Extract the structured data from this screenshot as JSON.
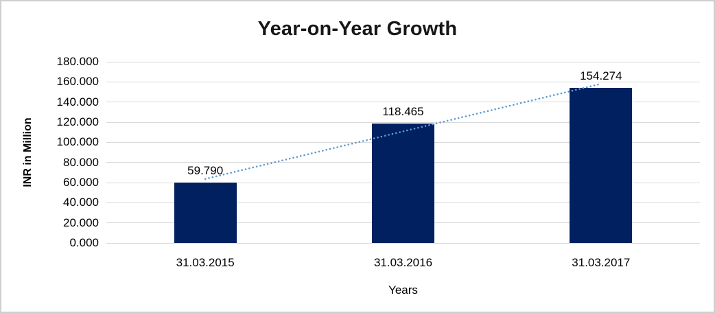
{
  "chart_data": {
    "type": "bar",
    "title": "Year-on-Year Growth",
    "xlabel": "Years",
    "ylabel": "INR in Million",
    "categories": [
      "31.03.2015",
      "31.03.2016",
      "31.03.2017"
    ],
    "values": [
      59.79,
      118.465,
      154.274
    ],
    "data_labels": [
      "59.790",
      "118.465",
      "154.274"
    ],
    "ylim": [
      0,
      180
    ],
    "y_tick_step": 20,
    "y_tick_labels": [
      "0.000",
      "20.000",
      "40.000",
      "60.000",
      "80.000",
      "100.000",
      "120.000",
      "140.000",
      "160.000",
      "180.000"
    ],
    "grid": true,
    "legend": "none",
    "bar_color": "#002060",
    "gridline_color": "#d9d9d9",
    "trendline": {
      "type": "linear",
      "style": "dotted",
      "color": "#5b9bd5"
    }
  }
}
